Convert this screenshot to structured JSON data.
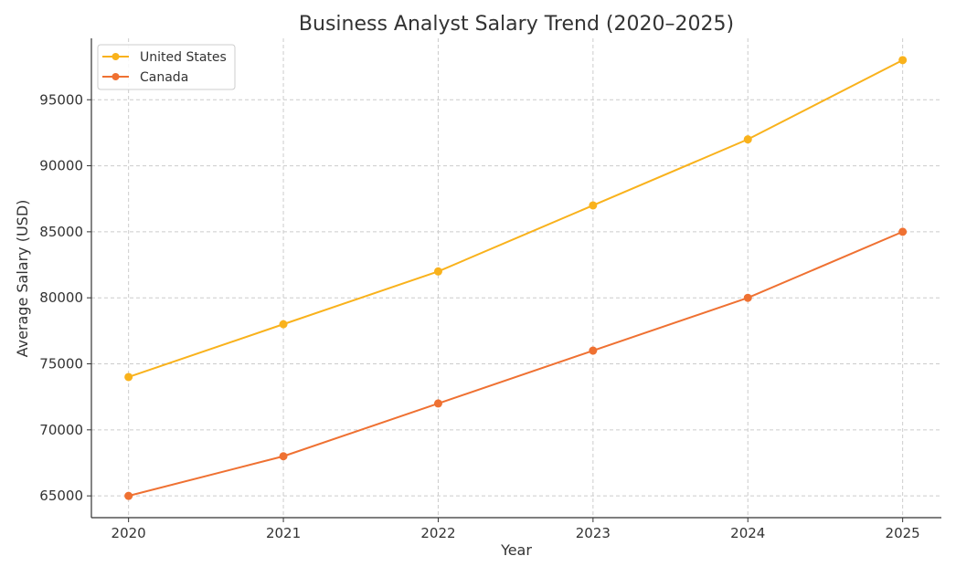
{
  "chart_data": {
    "type": "line",
    "title": "Business Analyst Salary Trend (2020–2025)",
    "xlabel": "Year",
    "ylabel": "Average Salary (USD)",
    "x": [
      2020,
      2021,
      2022,
      2023,
      2024,
      2025
    ],
    "xlim": [
      2019.76,
      2025.25
    ],
    "ylim": [
      63350,
      99650
    ],
    "yticks": [
      65000,
      70000,
      75000,
      80000,
      85000,
      90000,
      95000
    ],
    "grid": true,
    "legend_position": "top-left",
    "series": [
      {
        "name": "United States",
        "color": "#f9b21c",
        "values": [
          74000,
          78000,
          82000,
          87000,
          92000,
          98000
        ]
      },
      {
        "name": "Canada",
        "color": "#ef7132",
        "values": [
          65000,
          68000,
          72000,
          76000,
          80000,
          85000
        ]
      }
    ]
  }
}
